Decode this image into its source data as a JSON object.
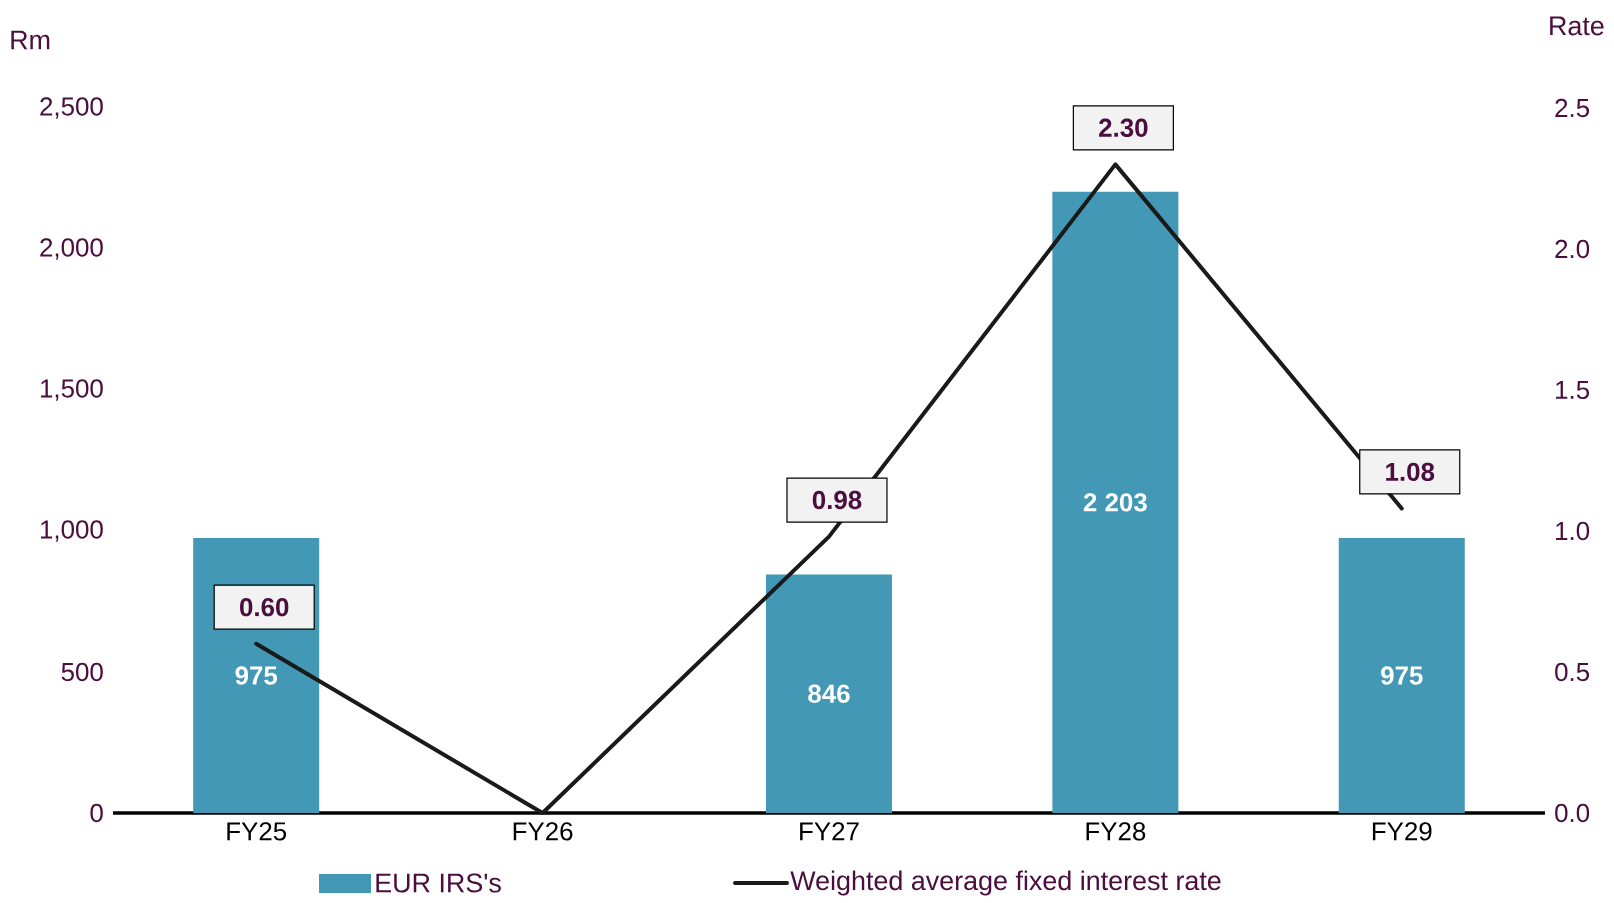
{
  "chart_data": {
    "type": "bar",
    "categories": [
      "FY25",
      "FY26",
      "FY27",
      "FY28",
      "FY29"
    ],
    "ylabel": "Rm",
    "y2label": "Rate",
    "ylim": [
      0,
      2500
    ],
    "yticks": [
      0,
      500,
      {
        "value": 1000,
        "label": "1,000"
      },
      {
        "value": 1500,
        "label": "1,500"
      },
      {
        "value": 2000,
        "label": "2,000"
      },
      {
        "value": 2500,
        "label": "2,500"
      }
    ],
    "y2lim": [
      0,
      2.5
    ],
    "y2ticks": [
      {
        "value": 0,
        "label": "0.0"
      },
      {
        "value": 0.5,
        "label": "0.5"
      },
      {
        "value": 1,
        "label": "1.0"
      },
      {
        "value": 1.5,
        "label": "1.5"
      },
      {
        "value": 2,
        "label": "2.0"
      },
      {
        "value": 2.5,
        "label": "2.5"
      }
    ],
    "series": [
      {
        "name": "EUR IRS's",
        "color": "#4398b5",
        "values": [
          975,
          null,
          846,
          2203,
          975
        ],
        "value_labels": [
          "975",
          null,
          "846",
          "2 203",
          "975"
        ]
      },
      {
        "name": "Weighted average fixed interest rate",
        "type": "line",
        "axis": "y2",
        "color": "#1a1a1a",
        "values": [
          0.6,
          0,
          0.98,
          2.3,
          1.08
        ],
        "value_labels": [
          "0.60",
          null,
          "0.98",
          "2.30",
          "1.08"
        ]
      }
    ],
    "legend": "bottom",
    "grid": false
  }
}
